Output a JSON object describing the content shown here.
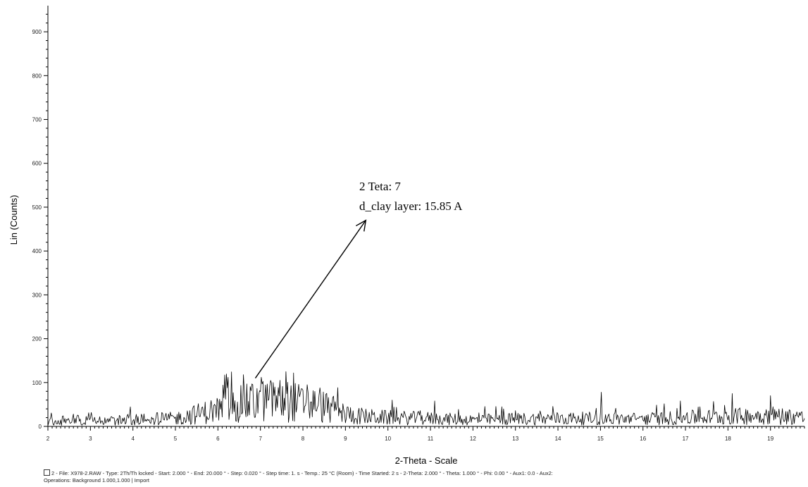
{
  "chart_data": {
    "type": "line",
    "title": "",
    "xlabel": "2-Theta - Scale",
    "ylabel": "Lin (Counts)",
    "xlim": [
      2,
      19.8
    ],
    "ylim": [
      0,
      950
    ],
    "x_ticks": [
      2,
      3,
      4,
      5,
      6,
      7,
      8,
      9,
      10,
      11,
      12,
      13,
      14,
      15,
      16,
      17,
      18,
      19
    ],
    "y_ticks": [
      0,
      100,
      200,
      300,
      400,
      500,
      600,
      700,
      800,
      900
    ],
    "grid": false,
    "series": [
      {
        "color": "#000000",
        "step": 0.02,
        "profile": [
          {
            "x": 2.0,
            "y": 10
          },
          {
            "x": 2.5,
            "y": 14
          },
          {
            "x": 3.0,
            "y": 16
          },
          {
            "x": 3.5,
            "y": 13
          },
          {
            "x": 4.0,
            "y": 16
          },
          {
            "x": 4.5,
            "y": 17
          },
          {
            "x": 5.0,
            "y": 18
          },
          {
            "x": 5.5,
            "y": 28
          },
          {
            "x": 6.0,
            "y": 38
          },
          {
            "x": 6.5,
            "y": 50
          },
          {
            "x": 7.0,
            "y": 58
          },
          {
            "x": 7.5,
            "y": 60
          },
          {
            "x": 8.0,
            "y": 52
          },
          {
            "x": 8.5,
            "y": 45
          },
          {
            "x": 9.0,
            "y": 28
          },
          {
            "x": 9.5,
            "y": 22
          },
          {
            "x": 10.0,
            "y": 20
          },
          {
            "x": 11.0,
            "y": 18
          },
          {
            "x": 12.0,
            "y": 15
          },
          {
            "x": 13.0,
            "y": 17
          },
          {
            "x": 14.0,
            "y": 18
          },
          {
            "x": 15.0,
            "y": 18
          },
          {
            "x": 16.0,
            "y": 17
          },
          {
            "x": 17.0,
            "y": 20
          },
          {
            "x": 18.0,
            "y": 22
          },
          {
            "x": 19.0,
            "y": 26
          },
          {
            "x": 19.8,
            "y": 20
          }
        ],
        "spikes": [
          {
            "x": 6.6,
            "y": 118
          },
          {
            "x": 6.82,
            "y": 95
          },
          {
            "x": 7.02,
            "y": 112
          },
          {
            "x": 7.3,
            "y": 100
          },
          {
            "x": 7.6,
            "y": 125
          },
          {
            "x": 7.78,
            "y": 122
          },
          {
            "x": 8.1,
            "y": 95
          },
          {
            "x": 8.4,
            "y": 88
          },
          {
            "x": 15.02,
            "y": 78
          },
          {
            "x": 18.1,
            "y": 75
          },
          {
            "x": 19.0,
            "y": 70
          },
          {
            "x": 10.1,
            "y": 60
          },
          {
            "x": 11.1,
            "y": 58
          }
        ]
      }
    ],
    "annotations": [
      {
        "line1": "2 Teta: 7",
        "line2": "d_clay layer: 15.85 A",
        "arrow_from": [
          6.88,
          110
        ],
        "arrow_to": [
          9.48,
          470
        ]
      }
    ]
  },
  "caption": {
    "box_label": "□2",
    "line1": "2 - File: X978-2.RAW - Type: 2Th/Th locked - Start: 2.000 ° - End: 20.000 ° - Step: 0.020 ° - Step time: 1. s - Temp.: 25 °C (Room) - Time Started: 2 s - 2-Theta: 2.000 ° - Theta: 1.000 ° - Phi: 0.00 ° - Aux1: 0.0 - Aux2:",
    "line2": "Operations: Background 1.000,1.000 | Import"
  }
}
